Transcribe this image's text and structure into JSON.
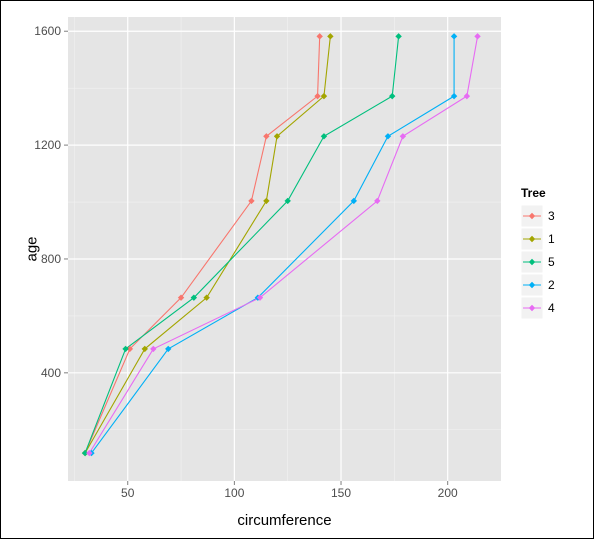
{
  "chart_data": {
    "type": "line",
    "title": "",
    "xlabel": "circumference",
    "ylabel": "age",
    "xlim": [
      22,
      225
    ],
    "ylim": [
      20,
      1650
    ],
    "xticks": [
      50,
      100,
      150,
      200
    ],
    "yticks": [
      400,
      800,
      1200,
      1600
    ],
    "grid": true,
    "legend_title": "Tree",
    "legend_position": "right",
    "series": [
      {
        "name": "3",
        "color": "#F8766D",
        "x": [
          30,
          51,
          75,
          108,
          115,
          139,
          140
        ],
        "y": [
          118,
          484,
          664,
          1004,
          1231,
          1372,
          1582
        ]
      },
      {
        "name": "1",
        "color": "#A3A500",
        "x": [
          30,
          58,
          87,
          115,
          120,
          142,
          145
        ],
        "y": [
          118,
          484,
          664,
          1004,
          1231,
          1372,
          1582
        ]
      },
      {
        "name": "5",
        "color": "#00BF7D",
        "x": [
          30,
          49,
          81,
          125,
          142,
          174,
          177
        ],
        "y": [
          118,
          484,
          664,
          1004,
          1231,
          1372,
          1582
        ]
      },
      {
        "name": "2",
        "color": "#00B0F6",
        "x": [
          33,
          69,
          111,
          156,
          172,
          203,
          203
        ],
        "y": [
          118,
          484,
          664,
          1004,
          1231,
          1372,
          1582
        ]
      },
      {
        "name": "4",
        "color": "#E76BF3",
        "x": [
          32,
          62,
          112,
          167,
          179,
          209,
          214
        ],
        "y": [
          118,
          484,
          664,
          1004,
          1231,
          1372,
          1582
        ]
      }
    ]
  }
}
